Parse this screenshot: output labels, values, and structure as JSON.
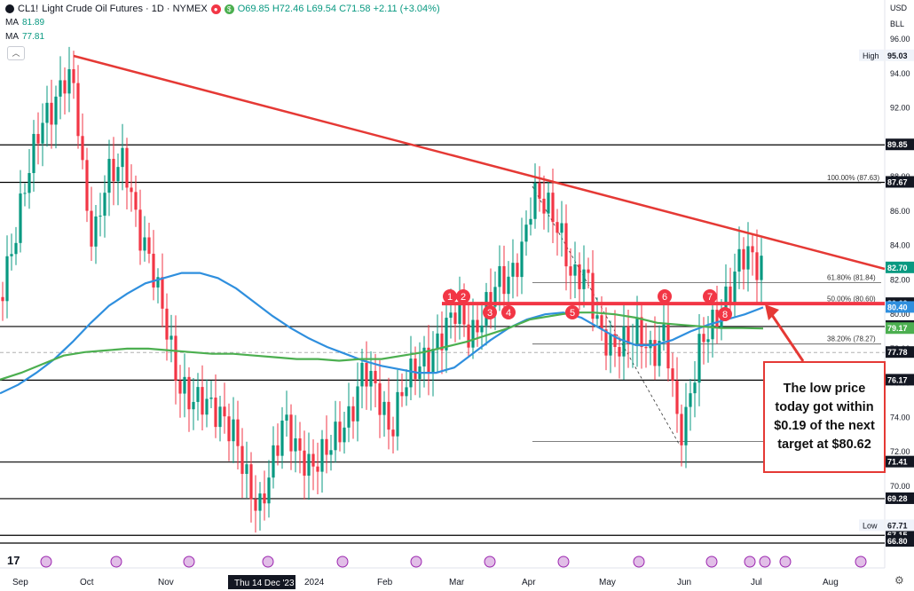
{
  "header": {
    "symbol": "CL1!",
    "title": "Light Crude Oil Futures · 1D · NYMEX",
    "ohlc": "O69.85 H72.46 L69.54 C71.58 +2.11 (+3.04%)",
    "ma1_label": "MA",
    "ma1_value": "81.89",
    "ma2_label": "MA",
    "ma2_value": "77.81",
    "currency": "USD",
    "unit": "BLL"
  },
  "annotation": "The low price today got within $0.19 of the next target at $80.62",
  "chart_data": {
    "type": "candlestick",
    "ylim": [
      65.5,
      98
    ],
    "y_ticks": [
      70.0,
      72.0,
      74.0,
      76.0,
      78.0,
      80.0,
      82.0,
      84.0,
      86.0,
      88.0,
      90.0,
      92.0,
      94.0,
      96.0
    ],
    "x_labels": [
      "Sep",
      "Oct",
      "Nov",
      "Dec",
      "2024",
      "Feb",
      "Mar",
      "Apr",
      "May",
      "Jun",
      "Jul",
      "Aug"
    ],
    "crosshair_date": "Thu 14 Dec '23",
    "horizontal_levels": [
      89.85,
      87.67,
      80.62,
      79.29,
      76.17,
      71.41,
      69.28,
      67.15
    ],
    "price_tags": [
      {
        "label": "",
        "value": 89.85,
        "kind": "level"
      },
      {
        "label": "",
        "value": 87.67,
        "kind": "level"
      },
      {
        "label": "",
        "value": 82.7,
        "kind": "last"
      },
      {
        "label": "",
        "value": 80.62,
        "kind": "level"
      },
      {
        "label": "",
        "value": 80.4,
        "kind": "ma_blue"
      },
      {
        "label": "",
        "value": 79.29,
        "kind": "level"
      },
      {
        "label": "",
        "value": 79.17,
        "kind": "ma_green"
      },
      {
        "label": "",
        "value": 77.78,
        "kind": "level"
      },
      {
        "label": "",
        "value": 76.17,
        "kind": "level"
      },
      {
        "label": "",
        "value": 71.41,
        "kind": "level"
      },
      {
        "label": "",
        "value": 69.28,
        "kind": "level"
      },
      {
        "label": "",
        "value": 67.15,
        "kind": "level"
      },
      {
        "label": "",
        "value": 66.8,
        "kind": "level"
      },
      {
        "label": "High",
        "value": 95.03,
        "kind": "hl"
      },
      {
        "label": "Low",
        "value": 67.71,
        "kind": "hl"
      }
    ],
    "fib_labels": [
      {
        "text": "100.00% (87.63)",
        "value": 87.63
      },
      {
        "text": "61.80% (81.84)",
        "value": 81.84
      },
      {
        "text": "50.00% (80.60)",
        "value": 80.6
      },
      {
        "text": "38.20% (78.27)",
        "value": 78.27
      }
    ],
    "markers": [
      "1",
      "2",
      "3",
      "4",
      "5",
      "6",
      "7",
      "8"
    ],
    "ma_blue": [
      75.4,
      75.9,
      76.6,
      77.4,
      78.4,
      79.5,
      80.5,
      81.2,
      81.8,
      82.1,
      82.4,
      82.4,
      82.1,
      81.5,
      80.7,
      79.9,
      79.2,
      78.6,
      78.1,
      77.7,
      77.3,
      77.0,
      76.8,
      76.6,
      76.6,
      76.9,
      77.7,
      78.5,
      79.2,
      79.7,
      80.0,
      80.1,
      79.8,
      79.2,
      78.6,
      78.2,
      78.2,
      78.5,
      79.0,
      79.4,
      79.7,
      80.0,
      80.4
    ],
    "ma_green": [
      76.2,
      76.6,
      77.1,
      77.6,
      77.8,
      77.9,
      78.0,
      78.0,
      77.9,
      77.8,
      77.7,
      77.7,
      77.6,
      77.5,
      77.4,
      77.4,
      77.3,
      77.4,
      77.4,
      77.6,
      77.8,
      78.1,
      78.4,
      78.8,
      79.2,
      79.7,
      79.9,
      80.1,
      80.1,
      80.0,
      79.8,
      79.5,
      79.4,
      79.3,
      79.2,
      79.2,
      79.17
    ]
  }
}
